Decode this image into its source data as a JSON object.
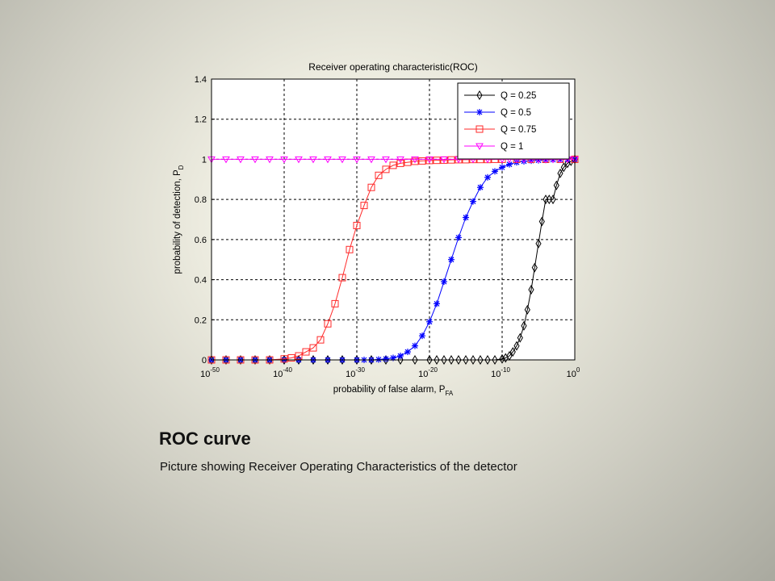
{
  "slide": {
    "title": "ROC curve",
    "caption": "Picture showing Receiver Operating Characteristics of the detector"
  },
  "chart_data": {
    "type": "line",
    "title": "Receiver operating characteristic(ROC)",
    "xlabel": "probability of false alarm, P",
    "xlabel_sub": "FA",
    "ylabel": "probability of detection, P",
    "ylabel_sub": "D",
    "x_scale": "log",
    "x_exponent_range": [
      -50,
      0
    ],
    "x_ticks": [
      {
        "base": "10",
        "exp": "-50"
      },
      {
        "base": "10",
        "exp": "-40"
      },
      {
        "base": "10",
        "exp": "-30"
      },
      {
        "base": "10",
        "exp": "-20"
      },
      {
        "base": "10",
        "exp": "-10"
      },
      {
        "base": "10",
        "exp": "0"
      }
    ],
    "ylim": [
      0,
      1.4
    ],
    "y_ticks": [
      "0",
      "0.2",
      "0.4",
      "0.6",
      "0.8",
      "1",
      "1.2",
      "1.4"
    ],
    "grid": true,
    "grid_style": "dashed",
    "legend_position": "top-right",
    "series": [
      {
        "name": "Q = 0.25",
        "color": "#000000",
        "marker": "diamond",
        "x": [
          1e-50,
          1e-48,
          1e-46,
          1e-44,
          1e-42,
          1e-40,
          1e-38,
          1e-36,
          1e-34,
          1e-32,
          1e-30,
          1e-28,
          1e-26,
          1e-24,
          1e-22,
          1e-20,
          1e-19,
          1e-18,
          1e-17,
          1e-16,
          1e-15,
          1e-14,
          1e-13,
          1e-12,
          1e-11,
          1e-10,
          3e-10,
          1e-09,
          3e-09,
          1e-08,
          3e-08,
          1e-07,
          3e-07,
          1e-06,
          3e-06,
          1e-05,
          3e-05,
          0.0001,
          0.0003,
          0.001,
          0.003,
          0.01,
          0.03,
          0.1,
          0.3,
          1
        ],
        "y": [
          0,
          0,
          0,
          0,
          0,
          0,
          0,
          0,
          0,
          0,
          0,
          0,
          0,
          0,
          0,
          0,
          0,
          0,
          0,
          0,
          0,
          0,
          0,
          0,
          0,
          0.005,
          0.01,
          0.02,
          0.04,
          0.07,
          0.11,
          0.17,
          0.25,
          0.35,
          0.46,
          0.58,
          0.69,
          0.8,
          0.8,
          0.8,
          0.87,
          0.93,
          0.96,
          0.98,
          0.99,
          1.0
        ]
      },
      {
        "name": "Q = 0.5",
        "color": "#0000ff",
        "marker": "asterisk",
        "x": [
          1e-50,
          1e-48,
          1e-46,
          1e-44,
          1e-42,
          1e-40,
          1e-38,
          1e-36,
          1e-34,
          1e-32,
          1e-30,
          1e-29,
          1e-28,
          1e-27,
          1e-26,
          1e-25,
          1e-24,
          1e-23,
          1e-22,
          1e-21,
          1e-20,
          1e-19,
          1e-18,
          1e-17,
          1e-16,
          1e-15,
          1e-14,
          1e-13,
          1e-12,
          1e-11,
          1e-10,
          1e-09,
          1e-08,
          1e-07,
          1e-06,
          1e-05,
          0.0001,
          0.001,
          0.01,
          0.1,
          1
        ],
        "y": [
          0,
          0,
          0,
          0,
          0,
          0,
          0,
          0,
          0,
          0,
          0,
          0,
          0,
          0.002,
          0.005,
          0.01,
          0.02,
          0.04,
          0.07,
          0.12,
          0.19,
          0.28,
          0.39,
          0.5,
          0.61,
          0.71,
          0.79,
          0.86,
          0.91,
          0.94,
          0.96,
          0.975,
          0.985,
          0.99,
          0.993,
          0.995,
          0.997,
          0.998,
          0.999,
          1.0,
          1.0
        ]
      },
      {
        "name": "Q = 0.75",
        "color": "#ff2a2a",
        "marker": "square",
        "x": [
          1e-50,
          1e-48,
          1e-46,
          1e-44,
          1e-42,
          1e-40,
          1e-39,
          1e-38,
          1e-37,
          1e-36,
          1e-35,
          1e-34,
          1e-33,
          1e-32,
          1e-31,
          1e-30,
          1e-29,
          1e-28,
          1e-27,
          1e-26,
          1e-25,
          1e-24,
          1e-23,
          1e-22,
          1e-21,
          1e-20,
          1e-19,
          1e-18,
          1e-17,
          1e-16,
          1e-15,
          1e-14,
          1e-13,
          1e-12,
          1e-11,
          1e-10,
          1e-08,
          1e-06,
          0.0001,
          0.01,
          1
        ],
        "y": [
          0,
          0,
          0,
          0,
          0,
          0.005,
          0.01,
          0.02,
          0.04,
          0.06,
          0.1,
          0.18,
          0.28,
          0.41,
          0.55,
          0.67,
          0.77,
          0.86,
          0.92,
          0.95,
          0.97,
          0.98,
          0.985,
          0.99,
          0.992,
          0.994,
          0.995,
          0.996,
          0.997,
          0.998,
          0.998,
          0.999,
          0.999,
          0.999,
          1.0,
          1.0,
          1.0,
          1.0,
          1.0,
          1.0,
          1.0
        ]
      },
      {
        "name": "Q = 1",
        "color": "#ff00ff",
        "marker": "triangle-down",
        "x": [
          1e-50,
          1e-48,
          1e-46,
          1e-44,
          1e-42,
          1e-40,
          1e-38,
          1e-36,
          1e-34,
          1e-32,
          1e-30,
          1e-28,
          1e-26,
          1e-24,
          1e-22,
          1e-20,
          1e-18,
          1e-16,
          1e-14,
          1e-12,
          1e-10,
          1e-09,
          1e-08,
          1e-07,
          1e-06,
          1e-05,
          0.0001,
          0.001,
          0.01,
          0.1,
          1
        ],
        "y": [
          1,
          1,
          1,
          1,
          1,
          1,
          1,
          1,
          1,
          1,
          1,
          1,
          1,
          1,
          1,
          1,
          1,
          1,
          1,
          1,
          1,
          1,
          1,
          1,
          1,
          1,
          1,
          1,
          1,
          1,
          1
        ]
      }
    ]
  }
}
